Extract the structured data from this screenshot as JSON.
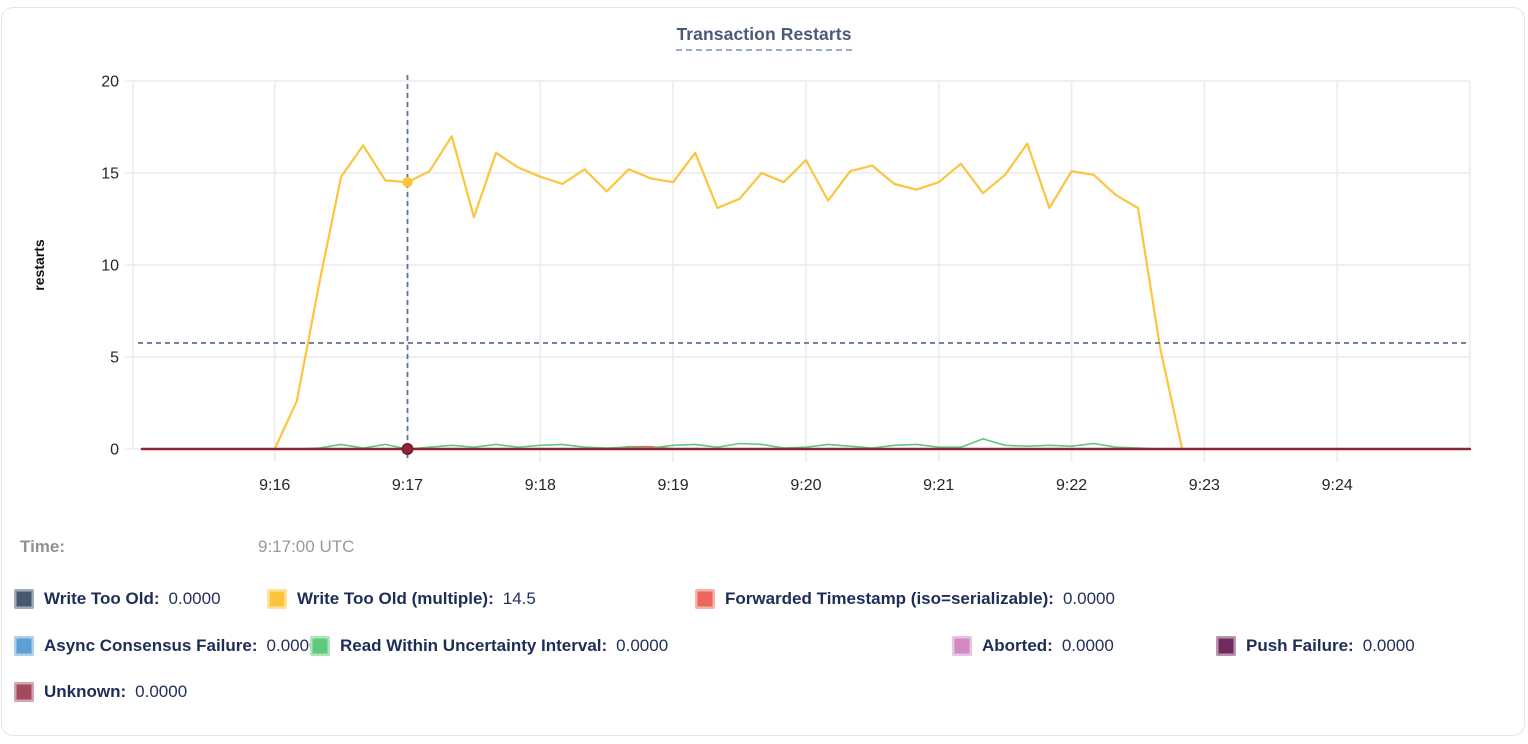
{
  "chart": {
    "title": "Transaction Restarts",
    "ylabel": "restarts",
    "y_ticks": [
      0,
      5,
      10,
      15,
      20
    ],
    "ylim": [
      0,
      20
    ],
    "x_ticks": [
      "9:16",
      "9:17",
      "9:18",
      "9:19",
      "9:20",
      "9:21",
      "9:22",
      "9:23",
      "9:24"
    ],
    "x_domain": {
      "start": "9:14:56",
      "end": "9:25:00"
    },
    "crosshair": {
      "time": "9:17:00",
      "horizontal_value": 5.76,
      "dots": [
        {
          "series_key": "write_too_old_multiple",
          "value": 14.5
        },
        {
          "series_key": "unknown",
          "value": 0
        }
      ]
    },
    "colors": {
      "gridline": "#ececec",
      "crosshair": "#5b7693",
      "axis_text": "#262626",
      "title_text": "#4a5a7d",
      "legend_text": "#1e2d57",
      "muted_text": "#939598"
    }
  },
  "chart_data": {
    "type": "line",
    "title": "Transaction Restarts",
    "xlabel": "",
    "ylabel": "restarts",
    "ylim": [
      0,
      20
    ],
    "x_tick_labels": [
      "9:16",
      "9:17",
      "9:18",
      "9:19",
      "9:20",
      "9:21",
      "9:22",
      "9:23",
      "9:24"
    ],
    "grid": true,
    "legend_position": "bottom",
    "series": [
      {
        "key": "write_too_old",
        "name": "Write Too Old",
        "color": "#475770",
        "legend_value": "0.0000",
        "data": {
          "flat": 0,
          "start": "9:16:00",
          "end": "9:22:50"
        }
      },
      {
        "key": "async_consensus_failure",
        "name": "Async Consensus Failure",
        "color": "#5a9fd6",
        "legend_value": "0.0000",
        "data": {
          "flat": 0,
          "start": "9:16:00",
          "end": "9:22:50"
        }
      },
      {
        "key": "aborted",
        "name": "Aborted",
        "color": "#d388c4",
        "legend_value": "0.0000",
        "data": {
          "flat": 0,
          "start": "9:16:00",
          "end": "9:22:50"
        }
      },
      {
        "key": "push_failure",
        "name": "Push Failure",
        "color": "#6f2b5f",
        "legend_value": "0.0000",
        "data": {
          "flat": 0,
          "start": "9:16:00",
          "end": "9:22:50"
        }
      },
      {
        "key": "forwarded_timestamp",
        "name": "Forwarded Timestamp (iso=serializable)",
        "color": "#ec665c",
        "legend_value": "0.0000",
        "data": {
          "points": [
            [
              "9:16:00",
              0
            ],
            [
              "9:18:30",
              0
            ],
            [
              "9:18:40",
              0.12
            ],
            [
              "9:18:50",
              0.12
            ],
            [
              "9:19:00",
              0
            ],
            [
              "9:22:50",
              0
            ]
          ]
        }
      },
      {
        "key": "read_within_uncertainty_interval",
        "name": "Read Within Uncertainty Interval",
        "color": "#60c97d",
        "legend_value": "0.0000",
        "data": {
          "start": "9:16:00",
          "step_seconds": 10,
          "values": [
            0,
            0,
            0.05,
            0.25,
            0.05,
            0.25,
            0,
            0.1,
            0.2,
            0.1,
            0.25,
            0.1,
            0.2,
            0.25,
            0.1,
            0.05,
            0.1,
            0.05,
            0.2,
            0.25,
            0.1,
            0.3,
            0.25,
            0.05,
            0.1,
            0.25,
            0.15,
            0.05,
            0.2,
            0.25,
            0.1,
            0.1,
            0.55,
            0.2,
            0.15,
            0.2,
            0.15,
            0.3,
            0.1,
            0.05,
            0,
            0
          ]
        }
      },
      {
        "key": "write_too_old_multiple",
        "name": "Write Too Old (multiple)",
        "color": "#fcc53d",
        "legend_value": "14.5",
        "data": {
          "start": "9:16:00",
          "step_seconds": 10,
          "values": [
            0,
            2.6,
            8.9,
            14.8,
            16.5,
            14.6,
            14.5,
            15.1,
            17.0,
            12.6,
            16.1,
            15.3,
            14.8,
            14.4,
            15.2,
            14.0,
            15.2,
            14.7,
            14.5,
            16.1,
            13.1,
            13.6,
            15.0,
            14.5,
            15.7,
            13.5,
            15.1,
            15.4,
            14.4,
            14.1,
            14.5,
            15.5,
            13.9,
            14.9,
            16.6,
            13.1,
            15.1,
            14.9,
            13.8,
            13.1,
            5.5,
            0
          ]
        }
      },
      {
        "key": "unknown",
        "name": "Unknown",
        "color": "#a34a5e",
        "line_color": "#8e2438",
        "legend_value": "0.0000",
        "data": {
          "flat": 0,
          "start": "9:15:00",
          "end": "9:25:00"
        }
      }
    ]
  },
  "time_row": {
    "label": "Time:",
    "value": "9:17:00 UTC"
  },
  "legend": {
    "rows": [
      [
        "write_too_old",
        "write_too_old_multiple",
        "forwarded_timestamp"
      ],
      [
        "async_consensus_failure",
        "read_within_uncertainty_interval",
        "aborted",
        "push_failure"
      ],
      [
        "unknown"
      ]
    ]
  }
}
